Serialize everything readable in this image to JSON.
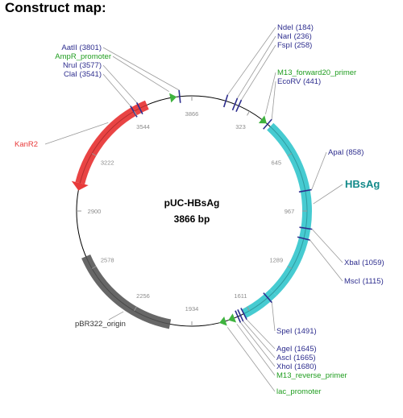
{
  "title": "Construct map:",
  "plasmid": {
    "name": "pUC-HBsAg",
    "size": "3866 bp",
    "length_bp": 3866
  },
  "colors": {
    "site": "#2d2d8e",
    "feature_label_green": "#1f9d1f",
    "kanr2": "#e83a3a",
    "hbsag": "#3cc8cf",
    "origin": "#5f5f5f",
    "lac": "#3cc8cf",
    "promoter_arrow": "#3fb33f",
    "tick": "#8c8c8c",
    "hbsag_label": "#138a8a"
  },
  "tick_labels": [
    "323",
    "645",
    "967",
    "1289",
    "1611",
    "1934",
    "2256",
    "2578",
    "2900",
    "3222",
    "3544",
    "3866"
  ],
  "features": [
    {
      "name": "KanR2",
      "label": "KanR2",
      "start": 3050,
      "end": 3620,
      "color": "#e83a3a",
      "arrow": "end"
    },
    {
      "name": "HBsAg",
      "label": "HBsAg",
      "start": 460,
      "end": 1450,
      "color": "#3cc8cf",
      "arrow": "none"
    },
    {
      "name": "lac",
      "label": "",
      "start": 1450,
      "end": 1645,
      "color": "#3cc8cf",
      "arrow": "none"
    },
    {
      "name": "pBR322_origin",
      "label": "pBR322_origin",
      "start": 2050,
      "end": 2650,
      "color": "#5f5f5f",
      "arrow": "none"
    }
  ],
  "small_features": [
    {
      "name": "AmpR_promoter",
      "pos": 3750
    },
    {
      "name": "M13_forward20_primer",
      "pos": 400
    },
    {
      "name": "M13_reverse_primer",
      "pos": 1700
    },
    {
      "name": "lac_promoter",
      "pos": 1750
    }
  ],
  "sites": [
    {
      "label": "AatII (3801)",
      "pos": 3801
    },
    {
      "label": "NruI (3577)",
      "pos": 3577
    },
    {
      "label": "ClaI (3541)",
      "pos": 3541
    },
    {
      "label": "NdeI (184)",
      "pos": 184
    },
    {
      "label": "NarI (236)",
      "pos": 236
    },
    {
      "label": "FspI (258)",
      "pos": 258
    },
    {
      "label": "EcoRV (441)",
      "pos": 441
    },
    {
      "label": "ApaI (858)",
      "pos": 858
    },
    {
      "label": "XbaI (1059)",
      "pos": 1059
    },
    {
      "label": "MscI (1115)",
      "pos": 1115
    },
    {
      "label": "SpeI (1491)",
      "pos": 1491
    },
    {
      "label": "AgeI (1645)",
      "pos": 1645
    },
    {
      "label": "AscI (1665)",
      "pos": 1665
    },
    {
      "label": "XhoI (1680)",
      "pos": 1680
    }
  ],
  "labels_left_top": [
    {
      "text": "AatII (3801)",
      "color": "#2d2d8e"
    },
    {
      "text": "AmpR_promoter",
      "color": "#1f9d1f"
    },
    {
      "text": "NruI (3577)",
      "color": "#2d2d8e"
    },
    {
      "text": "ClaI (3541)",
      "color": "#2d2d8e"
    }
  ],
  "labels_right_top": [
    {
      "text": "NdeI (184)",
      "color": "#2d2d8e"
    },
    {
      "text": "NarI (236)",
      "color": "#2d2d8e"
    },
    {
      "text": "FspI (258)",
      "color": "#2d2d8e"
    }
  ],
  "labels_right_mid": [
    {
      "text": "M13_forward20_primer",
      "color": "#1f9d1f"
    },
    {
      "text": "EcoRV (441)",
      "color": "#2d2d8e"
    }
  ],
  "labels_right_bottom": [
    {
      "text": "AgeI (1645)",
      "color": "#2d2d8e"
    },
    {
      "text": "AscI (1665)",
      "color": "#2d2d8e"
    },
    {
      "text": "XhoI (1680)",
      "color": "#2d2d8e"
    },
    {
      "text": "M13_reverse_primer",
      "color": "#1f9d1f"
    }
  ]
}
